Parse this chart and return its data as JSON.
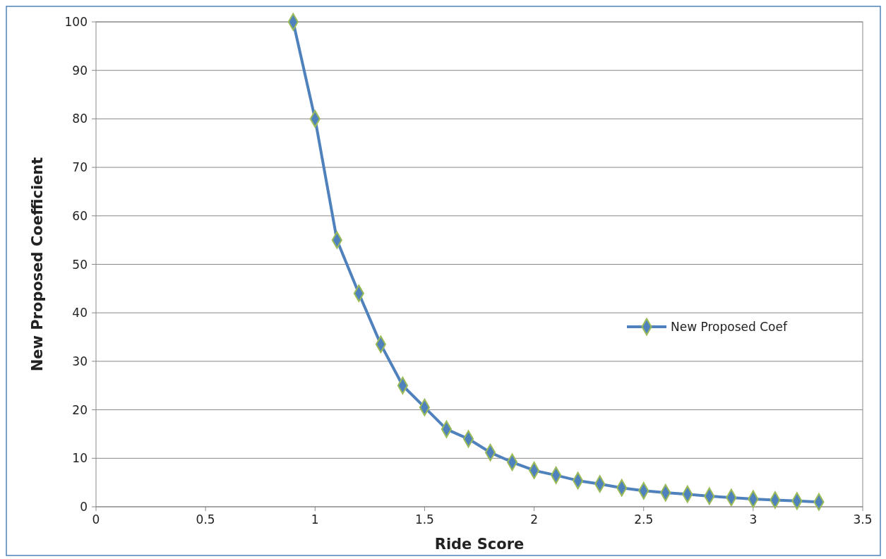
{
  "chart_data": {
    "type": "line",
    "xlabel": "Ride Score",
    "ylabel": "New Proposed Coefficient",
    "x": [
      0.9,
      1.0,
      1.1,
      1.2,
      1.3,
      1.4,
      1.5,
      1.6,
      1.7,
      1.8,
      1.9,
      2.0,
      2.1,
      2.2,
      2.3,
      2.4,
      2.5,
      2.6,
      2.7,
      2.8,
      2.9,
      3.0,
      3.1,
      3.2,
      3.3
    ],
    "series": [
      {
        "name": "New Proposed Coef",
        "color": "#4f81bd",
        "values": [
          100,
          80,
          55,
          44,
          33.5,
          25,
          20.5,
          16,
          14,
          11.2,
          9.2,
          7.5,
          6.5,
          5.4,
          4.7,
          3.9,
          3.3,
          2.9,
          2.6,
          2.2,
          1.9,
          1.6,
          1.4,
          1.2,
          1.0
        ]
      }
    ],
    "xlim": [
      0,
      3.5
    ],
    "xticks": [
      0,
      0.5,
      1,
      1.5,
      2,
      2.5,
      3,
      3.5
    ],
    "ylim": [
      0,
      100
    ],
    "yticks": [
      0,
      10,
      20,
      30,
      40,
      50,
      60,
      70,
      80,
      90,
      100
    ],
    "grid": "y",
    "legend": "right",
    "marker": "diamond",
    "line_style": "solid"
  }
}
